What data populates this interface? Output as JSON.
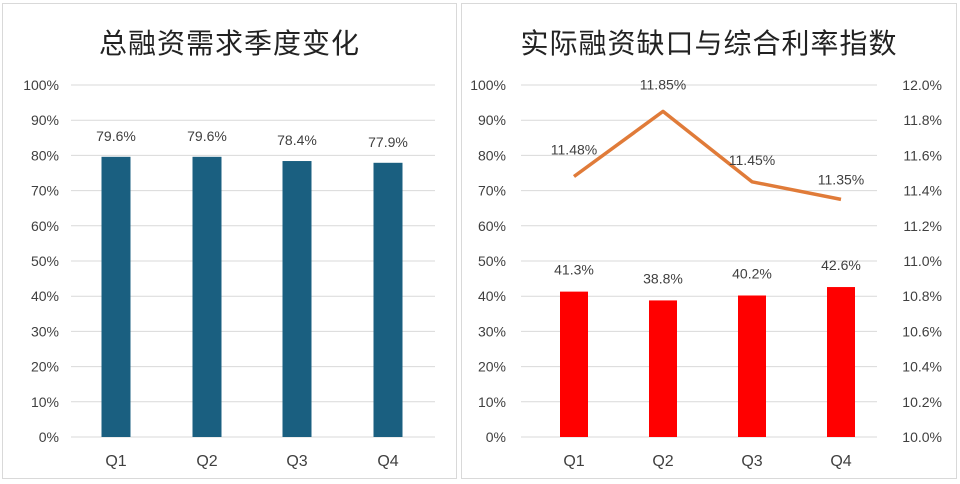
{
  "chart_data": [
    {
      "type": "bar",
      "title": "总融资需求季度变化",
      "categories": [
        "Q1",
        "Q2",
        "Q3",
        "Q4"
      ],
      "series": [
        {
          "name": "总融资需求",
          "values": [
            79.6,
            79.6,
            78.4,
            77.9
          ],
          "labels": [
            "79.6%",
            "79.6%",
            "78.4%",
            "77.9%"
          ],
          "color": "#1a5f80"
        }
      ],
      "y_ticks": [
        "0%",
        "10%",
        "20%",
        "30%",
        "40%",
        "50%",
        "60%",
        "70%",
        "80%",
        "90%",
        "100%"
      ],
      "ylim": [
        0,
        100
      ],
      "xlabel": "",
      "ylabel": "",
      "grid": true,
      "legend": "none"
    },
    {
      "type": "bar+line",
      "title": "实际融资缺口与综合利率指数",
      "categories": [
        "Q1",
        "Q2",
        "Q3",
        "Q4"
      ],
      "series": [
        {
          "name": "实际融资缺口",
          "type": "bar",
          "axis": "left",
          "values": [
            41.3,
            38.8,
            40.2,
            42.6
          ],
          "labels": [
            "41.3%",
            "38.8%",
            "40.2%",
            "42.6%"
          ],
          "color": "#ff0000"
        },
        {
          "name": "综合利率指数",
          "type": "line",
          "axis": "right",
          "values": [
            11.48,
            11.85,
            11.45,
            11.35
          ],
          "labels": [
            "11.48%",
            "11.85%",
            "11.45%",
            "11.35%"
          ],
          "color": "#e07b39"
        }
      ],
      "y_ticks": [
        "0%",
        "10%",
        "20%",
        "30%",
        "40%",
        "50%",
        "60%",
        "70%",
        "80%",
        "90%",
        "100%"
      ],
      "ylim": [
        0,
        100
      ],
      "y2_ticks": [
        "10.0%",
        "10.2%",
        "10.4%",
        "10.6%",
        "10.8%",
        "11.0%",
        "11.2%",
        "11.4%",
        "11.6%",
        "11.8%",
        "12.0%"
      ],
      "y2lim": [
        10.0,
        12.0
      ],
      "xlabel": "",
      "ylabel": "",
      "grid": true,
      "legend": "none"
    }
  ]
}
